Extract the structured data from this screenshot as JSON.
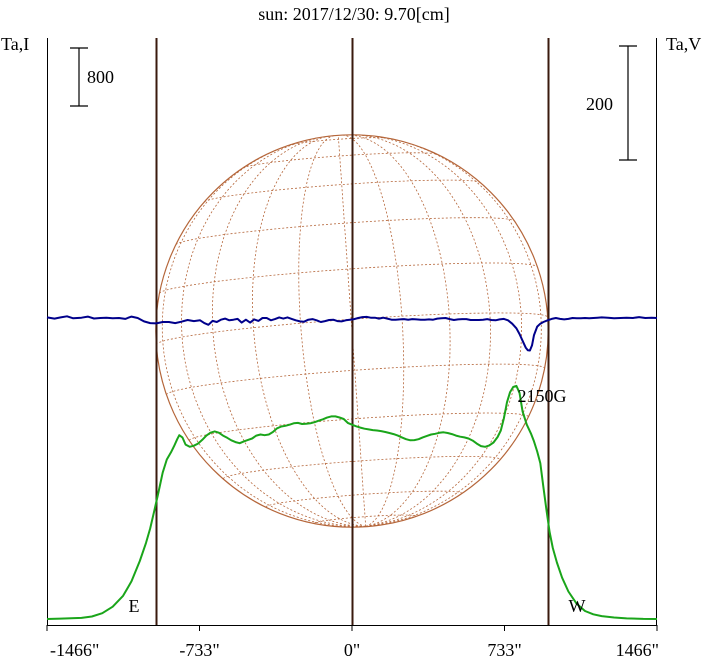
{
  "chart_data": {
    "type": "line",
    "title": "sun: 2017/12/30: 9.70[cm]",
    "left_axis_label": "Ta,I",
    "right_axis_label": "Ta,V",
    "xlim": [
      -1466,
      1466
    ],
    "x_ticks": [
      {
        "value": -1466,
        "label": "-1466\""
      },
      {
        "value": -733,
        "label": "-733\""
      },
      {
        "value": 0,
        "label": "0\""
      },
      {
        "value": 733,
        "label": "733\""
      },
      {
        "value": 1466,
        "label": "1466\""
      }
    ],
    "scale_bars": {
      "stokes_i": {
        "label": "800",
        "value": 800
      },
      "stokes_v": {
        "label": "200",
        "value": 200
      }
    },
    "limb_markers": [
      {
        "label": "E",
        "x": -943
      },
      {
        "label": "W",
        "x": 943
      }
    ],
    "center_line_x": 0,
    "annotations": [
      {
        "text": "2150G",
        "x": 860
      }
    ],
    "solar_disk": {
      "radius_arcsec": 943,
      "color": "#b5663a"
    },
    "series": [
      {
        "key": "I",
        "color": "#1aa51a",
        "points": [
          [
            -1466,
            0
          ],
          [
            -1400,
            5
          ],
          [
            -1300,
            15
          ],
          [
            -1250,
            35
          ],
          [
            -1200,
            80
          ],
          [
            -1150,
            170
          ],
          [
            -1100,
            320
          ],
          [
            -1060,
            520
          ],
          [
            -1020,
            800
          ],
          [
            -990,
            1050
          ],
          [
            -970,
            1250
          ],
          [
            -950,
            1500
          ],
          [
            -930,
            1750
          ],
          [
            -910,
            2020
          ],
          [
            -890,
            2200
          ],
          [
            -870,
            2300
          ],
          [
            -855,
            2385
          ],
          [
            -840,
            2480
          ],
          [
            -830,
            2535
          ],
          [
            -815,
            2505
          ],
          [
            -800,
            2405
          ],
          [
            -780,
            2375
          ],
          [
            -760,
            2390
          ],
          [
            -740,
            2420
          ],
          [
            -720,
            2470
          ],
          [
            -700,
            2530
          ],
          [
            -680,
            2570
          ],
          [
            -660,
            2588
          ],
          [
            -640,
            2570
          ],
          [
            -620,
            2530
          ],
          [
            -600,
            2500
          ],
          [
            -580,
            2465
          ],
          [
            -560,
            2440
          ],
          [
            -540,
            2425
          ],
          [
            -520,
            2450
          ],
          [
            -500,
            2470
          ],
          [
            -480,
            2490
          ],
          [
            -460,
            2530
          ],
          [
            -440,
            2545
          ],
          [
            -420,
            2535
          ],
          [
            -400,
            2545
          ],
          [
            -380,
            2580
          ],
          [
            -360,
            2630
          ],
          [
            -340,
            2655
          ],
          [
            -320,
            2665
          ],
          [
            -300,
            2680
          ],
          [
            -280,
            2700
          ],
          [
            -260,
            2705
          ],
          [
            -240,
            2690
          ],
          [
            -220,
            2692
          ],
          [
            -200,
            2700
          ],
          [
            -180,
            2715
          ],
          [
            -160,
            2735
          ],
          [
            -140,
            2755
          ],
          [
            -120,
            2778
          ],
          [
            -100,
            2795
          ],
          [
            -80,
            2795
          ],
          [
            -60,
            2780
          ],
          [
            -40,
            2758
          ],
          [
            -20,
            2705
          ],
          [
            0,
            2680
          ],
          [
            20,
            2658
          ],
          [
            40,
            2640
          ],
          [
            60,
            2625
          ],
          [
            80,
            2615
          ],
          [
            100,
            2605
          ],
          [
            120,
            2600
          ],
          [
            140,
            2592
          ],
          [
            160,
            2580
          ],
          [
            180,
            2565
          ],
          [
            200,
            2550
          ],
          [
            220,
            2530
          ],
          [
            240,
            2505
          ],
          [
            260,
            2480
          ],
          [
            280,
            2465
          ],
          [
            300,
            2468
          ],
          [
            320,
            2480
          ],
          [
            340,
            2505
          ],
          [
            360,
            2525
          ],
          [
            380,
            2545
          ],
          [
            400,
            2555
          ],
          [
            420,
            2568
          ],
          [
            440,
            2575
          ],
          [
            460,
            2565
          ],
          [
            480,
            2550
          ],
          [
            500,
            2530
          ],
          [
            520,
            2515
          ],
          [
            540,
            2505
          ],
          [
            560,
            2490
          ],
          [
            580,
            2460
          ],
          [
            600,
            2420
          ],
          [
            620,
            2385
          ],
          [
            640,
            2375
          ],
          [
            660,
            2395
          ],
          [
            680,
            2435
          ],
          [
            700,
            2510
          ],
          [
            715,
            2600
          ],
          [
            730,
            2770
          ],
          [
            745,
            2990
          ],
          [
            760,
            3130
          ],
          [
            775,
            3200
          ],
          [
            790,
            3215
          ],
          [
            805,
            3120
          ],
          [
            820,
            2860
          ],
          [
            840,
            2680
          ],
          [
            860,
            2560
          ],
          [
            875,
            2450
          ],
          [
            890,
            2310
          ],
          [
            905,
            2150
          ],
          [
            920,
            1820
          ],
          [
            935,
            1500
          ],
          [
            950,
            1200
          ],
          [
            965,
            980
          ],
          [
            985,
            780
          ],
          [
            1010,
            570
          ],
          [
            1040,
            380
          ],
          [
            1080,
            210
          ],
          [
            1120,
            110
          ],
          [
            1160,
            65
          ],
          [
            1200,
            40
          ],
          [
            1260,
            20
          ],
          [
            1320,
            8
          ],
          [
            1400,
            2
          ],
          [
            1466,
            0
          ]
        ]
      },
      {
        "key": "V",
        "color": "#00008b",
        "points": [
          [
            -1466,
            1.0
          ],
          [
            -1430,
            -1.0
          ],
          [
            -1400,
            1.0
          ],
          [
            -1370,
            3.0
          ],
          [
            -1340,
            -0.5
          ],
          [
            -1300,
            0.5
          ],
          [
            -1270,
            2.5
          ],
          [
            -1240,
            -0.8
          ],
          [
            -1210,
            0.0
          ],
          [
            -1180,
            0.5
          ],
          [
            -1150,
            -0.5
          ],
          [
            -1120,
            0.0
          ],
          [
            -1090,
            -1.5
          ],
          [
            -1060,
            2.5
          ],
          [
            -1030,
            0.0
          ],
          [
            -1000,
            -6.0
          ],
          [
            -970,
            -9.0
          ],
          [
            -940,
            -9.5
          ],
          [
            -910,
            -7.0
          ],
          [
            -880,
            -7.0
          ],
          [
            -850,
            -9.0
          ],
          [
            -820,
            -6.5
          ],
          [
            -790,
            -3.5
          ],
          [
            -760,
            -5.5
          ],
          [
            -730,
            -4.0
          ],
          [
            -710,
            -9.0
          ],
          [
            -690,
            -12.0
          ],
          [
            -670,
            -5.0
          ],
          [
            -650,
            -7.0
          ],
          [
            -630,
            -3.0
          ],
          [
            -610,
            -1.0
          ],
          [
            -590,
            -4.0
          ],
          [
            -570,
            -3.0
          ],
          [
            -550,
            -1.5
          ],
          [
            -530,
            -8.0
          ],
          [
            -510,
            -3.0
          ],
          [
            -490,
            -8.0
          ],
          [
            -470,
            -2.5
          ],
          [
            -450,
            -5.0
          ],
          [
            -430,
            0.0
          ],
          [
            -410,
            0.0
          ],
          [
            -390,
            -4.0
          ],
          [
            -370,
            -2.0
          ],
          [
            -350,
            1.0
          ],
          [
            -330,
            -1.0
          ],
          [
            -310,
            1.0
          ],
          [
            -290,
            -1.5
          ],
          [
            -270,
            -4.0
          ],
          [
            -250,
            -6.0
          ],
          [
            -230,
            -6.5
          ],
          [
            -210,
            -3.0
          ],
          [
            -190,
            -2.0
          ],
          [
            -170,
            -4.0
          ],
          [
            -150,
            -7.0
          ],
          [
            -130,
            -5.5
          ],
          [
            -110,
            -3.5
          ],
          [
            -90,
            -3.0
          ],
          [
            -70,
            -5.5
          ],
          [
            -50,
            -6.0
          ],
          [
            -30,
            -4.0
          ],
          [
            -10,
            -3.0
          ],
          [
            10,
            -2.0
          ],
          [
            30,
            0.0
          ],
          [
            50,
            1.5
          ],
          [
            70,
            2.0
          ],
          [
            90,
            0.5
          ],
          [
            110,
            0.5
          ],
          [
            130,
            -1.0
          ],
          [
            150,
            0.5
          ],
          [
            170,
            -1.0
          ],
          [
            190,
            -3.0
          ],
          [
            210,
            -3.0
          ],
          [
            230,
            -2.5
          ],
          [
            250,
            -2.0
          ],
          [
            270,
            -3.0
          ],
          [
            290,
            -2.0
          ],
          [
            310,
            -2.5
          ],
          [
            330,
            -3.0
          ],
          [
            350,
            -3.0
          ],
          [
            370,
            -2.5
          ],
          [
            390,
            -3.0
          ],
          [
            410,
            -1.0
          ],
          [
            430,
            -0.5
          ],
          [
            450,
            0.0
          ],
          [
            470,
            -2.0
          ],
          [
            490,
            -3.5
          ],
          [
            510,
            -2.5
          ],
          [
            530,
            -2.0
          ],
          [
            550,
            -2.0
          ],
          [
            570,
            -3.5
          ],
          [
            590,
            -3.5
          ],
          [
            610,
            -3.5
          ],
          [
            630,
            -3.0
          ],
          [
            650,
            -2.0
          ],
          [
            670,
            -3.5
          ],
          [
            690,
            -4.0
          ],
          [
            710,
            -2.5
          ],
          [
            730,
            -1.5
          ],
          [
            750,
            -4.0
          ],
          [
            770,
            -10.0
          ],
          [
            790,
            -18.0
          ],
          [
            805,
            -28.0
          ],
          [
            820,
            -40.0
          ],
          [
            835,
            -52.0
          ],
          [
            845,
            -56.5
          ],
          [
            855,
            -57.0
          ],
          [
            865,
            -48.0
          ],
          [
            875,
            -30.0
          ],
          [
            890,
            -15.0
          ],
          [
            905,
            -10.0
          ],
          [
            920,
            -7.0
          ],
          [
            940,
            -4.0
          ],
          [
            960,
            -1.5
          ],
          [
            980,
            0.0
          ],
          [
            1000,
            -1.5
          ],
          [
            1020,
            -2.5
          ],
          [
            1040,
            -1.5
          ],
          [
            1060,
            0.0
          ],
          [
            1080,
            -0.5
          ],
          [
            1100,
            -0.5
          ],
          [
            1120,
            0.0
          ],
          [
            1140,
            -0.5
          ],
          [
            1160,
            0.0
          ],
          [
            1180,
            0.5
          ],
          [
            1200,
            1.0
          ],
          [
            1230,
            0.5
          ],
          [
            1260,
            -0.5
          ],
          [
            1290,
            0.0
          ],
          [
            1320,
            0.5
          ],
          [
            1350,
            0.0
          ],
          [
            1380,
            1.5
          ],
          [
            1410,
            0.0
          ],
          [
            1440,
            0.5
          ],
          [
            1466,
            0.0
          ]
        ]
      }
    ]
  }
}
